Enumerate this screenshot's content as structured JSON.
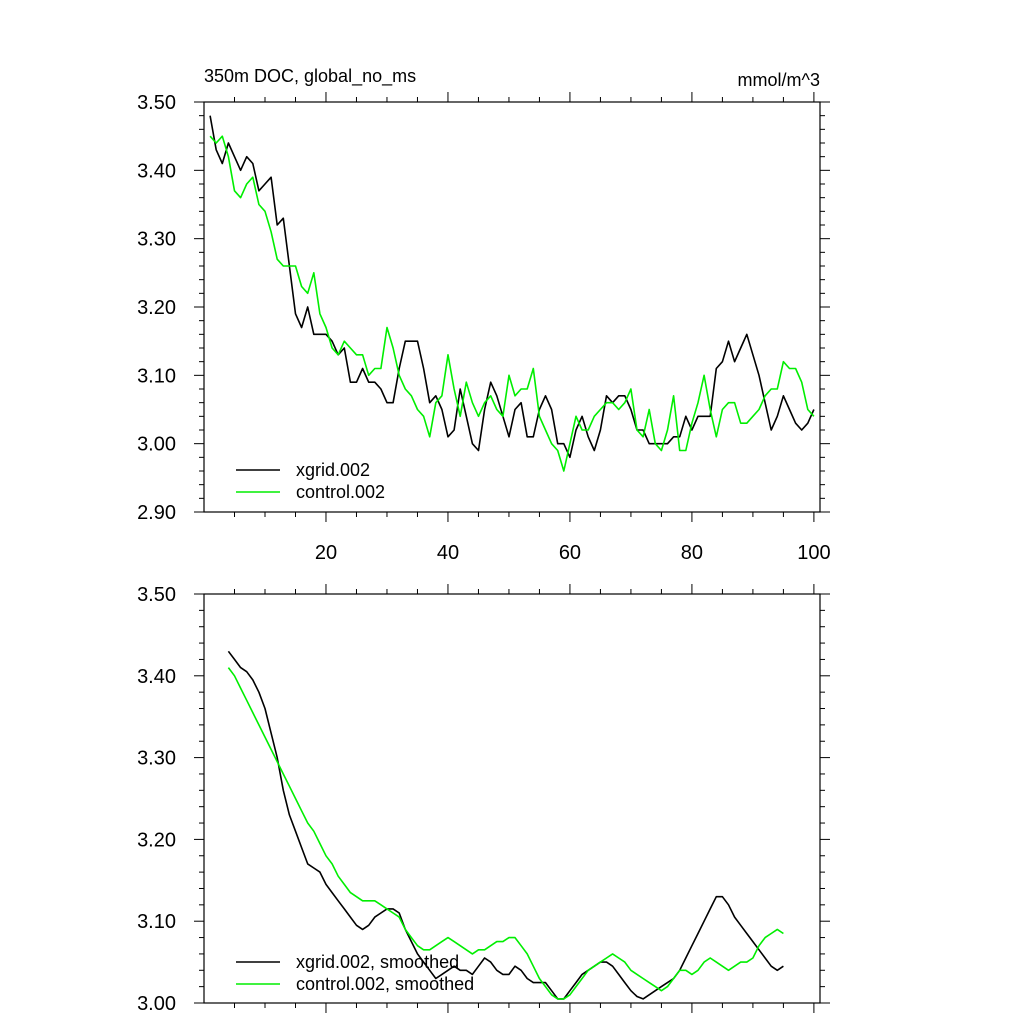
{
  "chart_data": [
    {
      "type": "line",
      "title": "350m DOC, global_no_ms",
      "units": "mmol/m^3",
      "xlabel": "",
      "ylabel": "",
      "xlim": [
        0,
        101
      ],
      "ylim": [
        2.9,
        3.5
      ],
      "xticks": [
        "20",
        "40",
        "60",
        "80",
        "100"
      ],
      "yticks": [
        "2.90",
        "3.00",
        "3.10",
        "3.20",
        "3.30",
        "3.40",
        "3.50"
      ],
      "legend_position": "bottom-left",
      "x_start": 1,
      "series": [
        {
          "name": "xgrid.002",
          "color": "#000000",
          "values": [
            3.48,
            3.43,
            3.41,
            3.44,
            3.42,
            3.4,
            3.42,
            3.41,
            3.37,
            3.38,
            3.39,
            3.32,
            3.33,
            3.26,
            3.19,
            3.17,
            3.2,
            3.16,
            3.16,
            3.16,
            3.15,
            3.13,
            3.14,
            3.09,
            3.09,
            3.11,
            3.09,
            3.09,
            3.08,
            3.06,
            3.06,
            3.11,
            3.15,
            3.15,
            3.15,
            3.11,
            3.06,
            3.07,
            3.05,
            3.01,
            3.02,
            3.08,
            3.04,
            3.0,
            2.99,
            3.05,
            3.09,
            3.07,
            3.04,
            3.01,
            3.05,
            3.06,
            3.01,
            3.01,
            3.05,
            3.07,
            3.05,
            3.0,
            3.0,
            2.98,
            3.02,
            3.04,
            3.01,
            2.99,
            3.02,
            3.07,
            3.06,
            3.07,
            3.07,
            3.05,
            3.02,
            3.02,
            3.0,
            3.0,
            3.0,
            3.0,
            3.01,
            3.01,
            3.04,
            3.02,
            3.04,
            3.04,
            3.04,
            3.11,
            3.12,
            3.15,
            3.12,
            3.14,
            3.16,
            3.13,
            3.1,
            3.06,
            3.02,
            3.04,
            3.07,
            3.05,
            3.03,
            3.02,
            3.03,
            3.05
          ]
        },
        {
          "name": "control.002",
          "color": "#00ee00",
          "values": [
            3.45,
            3.44,
            3.45,
            3.42,
            3.37,
            3.36,
            3.38,
            3.39,
            3.35,
            3.34,
            3.31,
            3.27,
            3.26,
            3.26,
            3.26,
            3.23,
            3.22,
            3.25,
            3.19,
            3.17,
            3.14,
            3.13,
            3.15,
            3.14,
            3.13,
            3.13,
            3.1,
            3.11,
            3.11,
            3.17,
            3.14,
            3.1,
            3.08,
            3.07,
            3.05,
            3.04,
            3.01,
            3.06,
            3.07,
            3.13,
            3.08,
            3.04,
            3.09,
            3.06,
            3.04,
            3.06,
            3.07,
            3.05,
            3.04,
            3.1,
            3.07,
            3.08,
            3.08,
            3.11,
            3.04,
            3.02,
            3.0,
            2.99,
            2.96,
            3.0,
            3.04,
            3.02,
            3.02,
            3.04,
            3.05,
            3.06,
            3.06,
            3.05,
            3.06,
            3.08,
            3.02,
            3.01,
            3.05,
            3.0,
            2.99,
            3.02,
            3.07,
            2.99,
            2.99,
            3.03,
            3.06,
            3.1,
            3.05,
            3.01,
            3.05,
            3.06,
            3.06,
            3.03,
            3.03,
            3.04,
            3.05,
            3.07,
            3.08,
            3.08,
            3.12,
            3.11,
            3.11,
            3.09,
            3.05,
            3.04
          ]
        }
      ]
    },
    {
      "type": "line",
      "title": "",
      "xlabel": "",
      "ylabel": "",
      "xlim": [
        0,
        101
      ],
      "ylim": [
        3.0,
        3.5
      ],
      "yticks": [
        "3.00",
        "3.10",
        "3.20",
        "3.30",
        "3.40",
        "3.50"
      ],
      "legend_position": "bottom-left",
      "x_start": 4,
      "series": [
        {
          "name": "xgrid.002, smoothed",
          "color": "#000000",
          "values": [
            3.43,
            3.42,
            3.41,
            3.405,
            3.395,
            3.38,
            3.36,
            3.33,
            3.3,
            3.26,
            3.23,
            3.21,
            3.19,
            3.17,
            3.165,
            3.16,
            3.145,
            3.135,
            3.125,
            3.115,
            3.105,
            3.095,
            3.09,
            3.095,
            3.105,
            3.11,
            3.115,
            3.115,
            3.11,
            3.09,
            3.075,
            3.06,
            3.05,
            3.04,
            3.03,
            3.035,
            3.04,
            3.045,
            3.04,
            3.04,
            3.035,
            3.045,
            3.055,
            3.05,
            3.04,
            3.035,
            3.035,
            3.045,
            3.04,
            3.03,
            3.025,
            3.025,
            3.025,
            3.015,
            3.005,
            3.005,
            3.015,
            3.025,
            3.035,
            3.04,
            3.045,
            3.05,
            3.05,
            3.045,
            3.035,
            3.025,
            3.015,
            3.008,
            3.005,
            3.01,
            3.015,
            3.02,
            3.025,
            3.03,
            3.04,
            3.055,
            3.07,
            3.085,
            3.1,
            3.115,
            3.13,
            3.13,
            3.12,
            3.105,
            3.095,
            3.085,
            3.075,
            3.065,
            3.055,
            3.045,
            3.04,
            3.045
          ]
        },
        {
          "name": "control.002, smoothed",
          "color": "#00ee00",
          "values": [
            3.41,
            3.4,
            3.385,
            3.37,
            3.355,
            3.34,
            3.325,
            3.31,
            3.295,
            3.28,
            3.265,
            3.25,
            3.235,
            3.22,
            3.21,
            3.195,
            3.18,
            3.17,
            3.155,
            3.145,
            3.135,
            3.13,
            3.125,
            3.125,
            3.125,
            3.12,
            3.115,
            3.11,
            3.105,
            3.09,
            3.08,
            3.07,
            3.065,
            3.065,
            3.07,
            3.075,
            3.08,
            3.075,
            3.07,
            3.065,
            3.06,
            3.065,
            3.065,
            3.07,
            3.075,
            3.075,
            3.08,
            3.08,
            3.07,
            3.06,
            3.045,
            3.03,
            3.02,
            3.01,
            3.005,
            3.005,
            3.01,
            3.02,
            3.03,
            3.04,
            3.045,
            3.05,
            3.055,
            3.06,
            3.055,
            3.05,
            3.04,
            3.035,
            3.03,
            3.025,
            3.02,
            3.015,
            3.02,
            3.03,
            3.04,
            3.04,
            3.035,
            3.04,
            3.05,
            3.055,
            3.05,
            3.045,
            3.04,
            3.045,
            3.05,
            3.05,
            3.055,
            3.07,
            3.08,
            3.085,
            3.09,
            3.085
          ]
        }
      ]
    }
  ]
}
